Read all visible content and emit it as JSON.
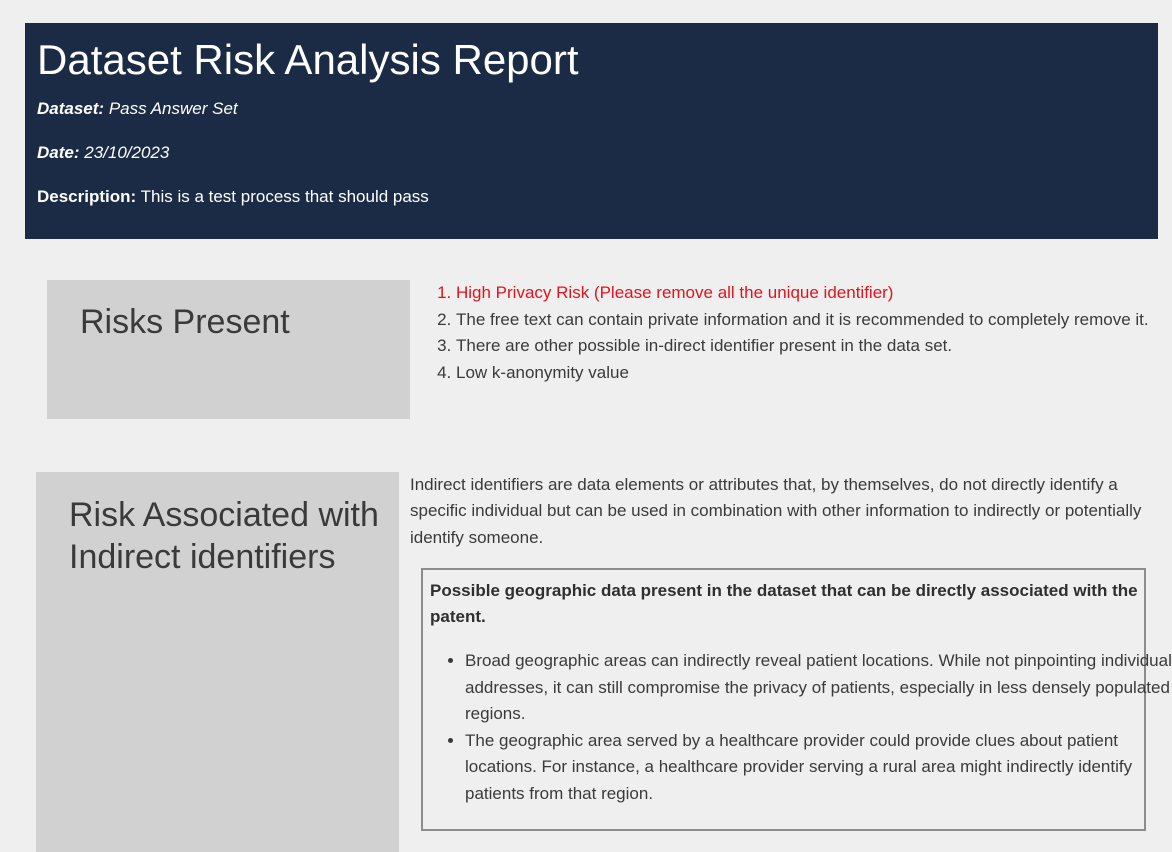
{
  "header": {
    "title": "Dataset Risk Analysis Report",
    "dataset_label": "Dataset:",
    "dataset_value": "Pass Answer Set",
    "date_label": "Date:",
    "date_value": "23/10/2023",
    "description_label": "Description:",
    "description_value": "This is a test process that should pass"
  },
  "risks": {
    "heading": "Risks Present",
    "items": [
      {
        "text": "High Privacy Risk (Please remove all the unique identifier)",
        "severity": "high",
        "color": "#e0141e"
      },
      {
        "text": "The free text can contain private information and it is recommended to completely remove it.",
        "severity": "normal"
      },
      {
        "text": "There are other possible in-direct identifier present in the data set.",
        "severity": "normal"
      },
      {
        "text": "Low k-anonymity value",
        "severity": "normal"
      }
    ]
  },
  "indirect": {
    "heading": "Risk Associated with Indirect identifiers",
    "intro": "Indirect identifiers are data elements or attributes that, by themselves, do not directly identify a specific individual but can be used in combination with other information to indirectly or potentially identify someone.",
    "geo": {
      "title": "Possible geographic data present in the dataset that can be directly associated with the patent.",
      "bullets": [
        "Broad geographic areas can indirectly reveal patient locations. While not pinpointing individual addresses, it can still compromise the privacy of patients, especially in less densely populated regions.",
        "The geographic area served by a healthcare provider could provide clues about patient locations. For instance, a healthcare provider serving a rural area might indirectly identify patients from that region."
      ]
    }
  },
  "colors": {
    "header_bg": "#1b2b45",
    "panel_bg": "#d1d1d1",
    "page_bg": "#efefef",
    "danger": "#e0141e"
  }
}
